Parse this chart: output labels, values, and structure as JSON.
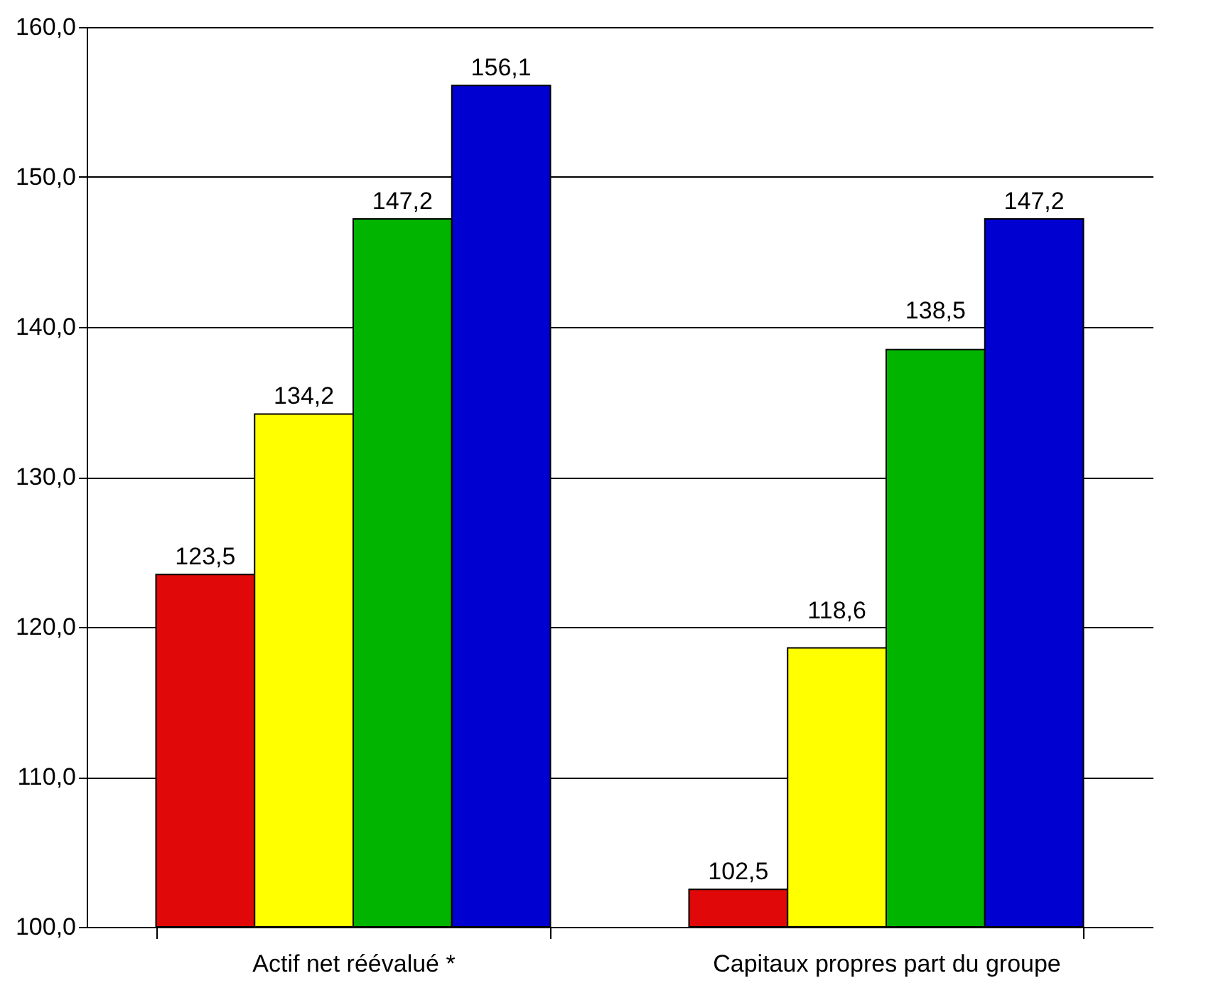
{
  "chart_data": {
    "type": "bar",
    "categories": [
      "Actif net réévalué *",
      "Capitaux propres part du groupe"
    ],
    "series": [
      {
        "color": "#e00808",
        "values": [
          123.5,
          102.5
        ],
        "value_labels": [
          "123,5",
          "102,5"
        ]
      },
      {
        "color": "#ffff00",
        "values": [
          134.2,
          118.6
        ],
        "value_labels": [
          "134,2",
          "118,6"
        ]
      },
      {
        "color": "#00b400",
        "values": [
          147.2,
          138.5
        ],
        "value_labels": [
          "147,2",
          "138,5"
        ]
      },
      {
        "color": "#0000d0",
        "values": [
          156.1,
          147.2
        ],
        "value_labels": [
          "156,1",
          "147,2"
        ]
      }
    ],
    "ylim": [
      100,
      160
    ],
    "yticks": [
      {
        "value": 100,
        "label": "100,0"
      },
      {
        "value": 110,
        "label": "110,0"
      },
      {
        "value": 120,
        "label": "120,0"
      },
      {
        "value": 130,
        "label": "130,0"
      },
      {
        "value": 140,
        "label": "140,0"
      },
      {
        "value": 150,
        "label": "150,0"
      },
      {
        "value": 160,
        "label": "160,0"
      }
    ],
    "grid": "y",
    "legend": false
  }
}
